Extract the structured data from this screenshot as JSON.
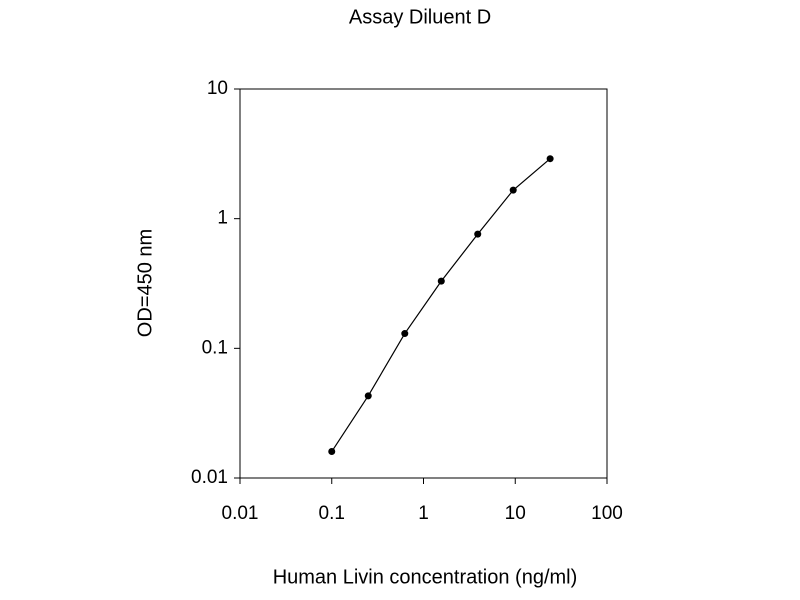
{
  "chart_data": {
    "type": "line",
    "title": "Assay Diluent D",
    "x_label": "Human Livin concentration (ng/ml)",
    "y_label": "OD=450 nm",
    "xscale": "log",
    "yscale": "log",
    "x": [
      0.1,
      0.25,
      0.625,
      1.5625,
      3.9,
      9.5,
      24
    ],
    "values": [
      0.016,
      0.043,
      0.13,
      0.33,
      0.76,
      1.66,
      2.9
    ],
    "color": "#000000",
    "xlim": [
      0.01,
      100
    ],
    "xticks": [
      0.01,
      0.1,
      1,
      10,
      100
    ],
    "ylim": [
      0.01,
      10
    ],
    "yticks": [
      0.01,
      0.1,
      1,
      10
    ]
  }
}
